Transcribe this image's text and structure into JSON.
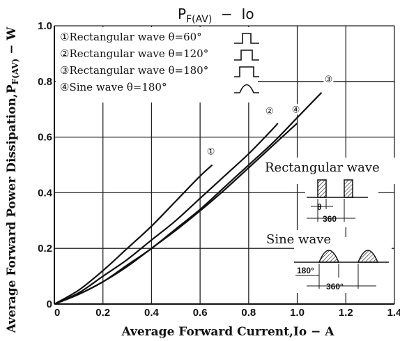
{
  "chart_data": {
    "type": "line",
    "title_main": "P",
    "title_sub": "F(AV)",
    "title_rest": "  −  Io",
    "xlabel": "Average Forward Current,Io − A",
    "ylabel_main": "Average Forward Power Dissipation,P",
    "ylabel_sub": "F(AV)",
    "ylabel_rest": " − W",
    "xlim": [
      0,
      1.4
    ],
    "ylim": [
      0,
      1.0
    ],
    "xticks": [
      0,
      0.2,
      0.4,
      0.6,
      0.8,
      1.0,
      1.2,
      1.4
    ],
    "xtick_labels": [
      "0",
      "0.2",
      "0.4",
      "0.6",
      "0.8",
      "1.0",
      "1.2",
      "1.4"
    ],
    "yticks": [
      0,
      0.2,
      0.4,
      0.6,
      0.8,
      1.0
    ],
    "ytick_labels": [
      "0",
      "0.2",
      "0.4",
      "0.6",
      "0.8",
      "1.0"
    ],
    "grid": true,
    "legend_position": "top-left",
    "series": [
      {
        "name": "①Rectangular wave θ=60°",
        "marker": "①",
        "icon": "pulse-narrow",
        "x": [
          0,
          0.1,
          0.2,
          0.3,
          0.4,
          0.5,
          0.6,
          0.65
        ],
        "y": [
          0,
          0.05,
          0.12,
          0.2,
          0.28,
          0.37,
          0.46,
          0.5
        ]
      },
      {
        "name": "②Rectangular wave θ=120°",
        "marker": "②",
        "icon": "pulse-medium",
        "x": [
          0,
          0.1,
          0.2,
          0.3,
          0.4,
          0.5,
          0.6,
          0.7,
          0.8,
          0.9,
          0.92
        ],
        "y": [
          0,
          0.04,
          0.1,
          0.16,
          0.23,
          0.3,
          0.38,
          0.46,
          0.54,
          0.63,
          0.65
        ]
      },
      {
        "name": "③Rectangular wave θ=180°",
        "marker": "③",
        "icon": "pulse-wide",
        "x": [
          0,
          0.1,
          0.2,
          0.3,
          0.4,
          0.5,
          0.6,
          0.7,
          0.8,
          0.9,
          1.0,
          1.1
        ],
        "y": [
          0,
          0.035,
          0.08,
          0.14,
          0.2,
          0.27,
          0.34,
          0.42,
          0.5,
          0.58,
          0.67,
          0.76
        ]
      },
      {
        "name": "④Sine wave θ=180°",
        "marker": "④",
        "icon": "sine-half",
        "x": [
          0,
          0.1,
          0.2,
          0.3,
          0.4,
          0.5,
          0.6,
          0.7,
          0.8,
          0.9,
          1.0
        ],
        "y": [
          0,
          0.035,
          0.08,
          0.135,
          0.2,
          0.265,
          0.335,
          0.41,
          0.49,
          0.57,
          0.65
        ]
      }
    ],
    "inset": {
      "rect_title": "Rectangular wave",
      "rect_theta": "θ",
      "rect_period": "360",
      "sine_title": "Sine wave",
      "sine_half": "180°",
      "sine_period": "360°"
    }
  }
}
